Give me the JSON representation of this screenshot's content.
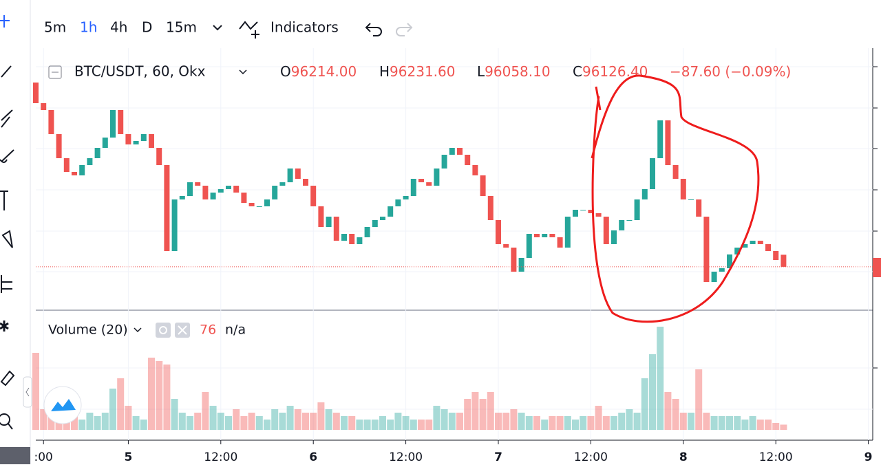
{
  "toolbar": {
    "intervals": [
      "5m",
      "1h",
      "4h",
      "D",
      "15m"
    ],
    "indicators": "Indicators"
  },
  "symbol_legend": {
    "symbol": "BTC/USDT, 60, Okx",
    "o_label": "O",
    "o": "96214.00",
    "h_label": "H",
    "h": "96231.60",
    "l_label": "L",
    "l": "96058.10",
    "c_label": "C",
    "c": "96126.40",
    "change": "−87.60 (−0.09%)"
  },
  "volume_legend": {
    "name": "Volume (20)",
    "na": "n/a"
  },
  "chart_data": {
    "type": "candlestick",
    "up_color": "#26a69a",
    "down_color": "#ef5350",
    "ylim": [
      95816,
      97591
    ],
    "open": [
      97466,
      97316,
      97266,
      97091,
      96916,
      96816,
      96791,
      96866,
      96916,
      96991,
      97066,
      97266,
      97091,
      97016,
      97041,
      97091,
      96991,
      96866,
      96241,
      96616,
      96641,
      96741,
      96716,
      96616,
      96666,
      96691,
      96716,
      96666,
      96591,
      96566,
      96566,
      96616,
      96716,
      96741,
      96841,
      96766,
      96716,
      96566,
      96416,
      96491,
      96316,
      96366,
      96291,
      96341,
      96416,
      96466,
      96491,
      96566,
      96616,
      96641,
      96766,
      96741,
      96716,
      96841,
      96941,
      96991,
      96941,
      96866,
      96791,
      96641,
      96466,
      96291,
      96266,
      96091,
      96191,
      96366,
      96341,
      96366,
      96341,
      96266,
      96491,
      96541,
      96541,
      96516,
      96491,
      96291,
      96391,
      96466,
      96466,
      96616,
      96691,
      96916,
      97191,
      96866,
      96766,
      96616,
      96616,
      96491,
      96016,
      96091,
      96116,
      96216,
      96266,
      96291,
      96316,
      96291,
      96241,
      96214
    ],
    "close": [
      97316,
      97266,
      97091,
      96916,
      96816,
      96791,
      96866,
      96916,
      96991,
      97066,
      97266,
      97091,
      97016,
      97041,
      97091,
      96991,
      96866,
      96241,
      96616,
      96641,
      96741,
      96716,
      96616,
      96666,
      96691,
      96716,
      96666,
      96591,
      96566,
      96566,
      96616,
      96716,
      96741,
      96841,
      96766,
      96716,
      96566,
      96416,
      96491,
      96316,
      96366,
      96291,
      96341,
      96416,
      96466,
      96491,
      96566,
      96616,
      96641,
      96766,
      96741,
      96716,
      96841,
      96941,
      96991,
      96941,
      96866,
      96791,
      96641,
      96466,
      96291,
      96266,
      96091,
      96191,
      96366,
      96341,
      96366,
      96341,
      96266,
      96491,
      96541,
      96541,
      96516,
      96491,
      96291,
      96391,
      96466,
      96466,
      96616,
      96691,
      96916,
      97191,
      96866,
      96766,
      96616,
      96616,
      96491,
      96016,
      96091,
      96116,
      96216,
      96266,
      96291,
      96316,
      96291,
      96241,
      96176,
      96126.4
    ],
    "volume": {
      "ylim": [
        0,
        1600
      ],
      "values": [
        1120,
        300,
        200,
        250,
        150,
        200,
        150,
        250,
        200,
        250,
        600,
        750,
        350,
        200,
        150,
        1050,
        1000,
        950,
        450,
        250,
        200,
        250,
        550,
        350,
        250,
        200,
        300,
        200,
        250,
        200,
        150,
        300,
        250,
        350,
        300,
        250,
        250,
        400,
        300,
        250,
        200,
        200,
        150,
        150,
        150,
        200,
        150,
        250,
        200,
        150,
        150,
        150,
        350,
        300,
        250,
        250,
        450,
        550,
        450,
        550,
        250,
        250,
        300,
        250,
        200,
        200,
        150,
        200,
        200,
        200,
        150,
        200,
        200,
        350,
        200,
        200,
        250,
        300,
        250,
        750,
        1100,
        1500,
        550,
        450,
        250,
        250,
        880,
        250,
        200,
        200,
        200,
        200,
        150,
        200,
        150,
        150,
        100,
        76
      ]
    },
    "xticks": [
      {
        "value": 1,
        "label": ":00"
      },
      {
        "value": 12,
        "label": "5"
      },
      {
        "value": 24,
        "label": "12:00"
      },
      {
        "value": 36,
        "label": "6"
      },
      {
        "value": 48,
        "label": "12:00"
      },
      {
        "value": 60,
        "label": "7"
      },
      {
        "value": 72,
        "label": "12:00"
      },
      {
        "value": 84,
        "label": "8"
      },
      {
        "value": 96,
        "label": "12:00"
      },
      {
        "value": 108,
        "label": "9"
      }
    ]
  }
}
